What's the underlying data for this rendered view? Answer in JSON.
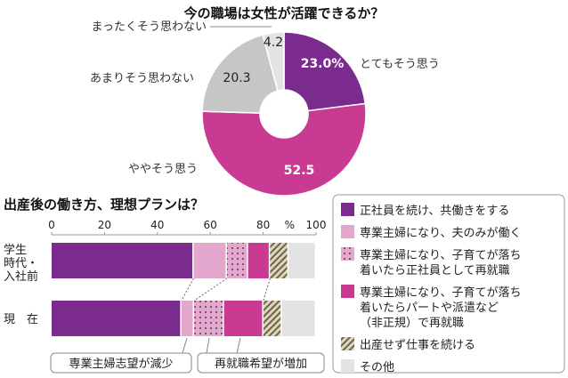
{
  "colors": {
    "full_time": "#7b2a8e",
    "housewife": "#e3a6cc",
    "housewife_regular": "#e3a6cc",
    "housewife_nonregular": "#c93a93",
    "no_children": "#c9c0a0",
    "other": "#e3e3e3",
    "pie_gray": "#c6c6c6",
    "pie_light": "#e3e3e3"
  },
  "chart_data": [
    {
      "type": "pie",
      "title": "今の職場は女性が活躍できるか？",
      "unit": "%",
      "slices": [
        {
          "label": "とてもそう思う",
          "value": 23.0,
          "value_label": "23.0%",
          "color": "#7b2a8e"
        },
        {
          "label": "ややそう思う",
          "value": 52.5,
          "value_label": "52.5",
          "color": "#c93a93"
        },
        {
          "label": "あまりそう思わない",
          "value": 20.3,
          "value_label": "20.3",
          "color": "#c6c6c6"
        },
        {
          "label": "まったくそう思わない",
          "value": 4.2,
          "value_label": "4.2",
          "color": "#e3e3e3"
        }
      ]
    },
    {
      "type": "bar",
      "orientation": "horizontal-stacked",
      "title": "出産後の働き方、理想プランは？",
      "xlim": [
        0,
        100
      ],
      "xticks": [
        "0",
        "20",
        "40",
        "60",
        "80",
        "100"
      ],
      "unit_label": "%",
      "categories": [
        "学生時代・入社前",
        "現　在"
      ],
      "category_lines": [
        [
          "学生",
          "時代・",
          "入社前"
        ],
        [
          "現　在"
        ]
      ],
      "series": [
        {
          "name": "正社員を続け、共働きをする",
          "values": [
            53.7,
            49.1
          ],
          "color": "#7b2a8e",
          "pattern": "solid"
        },
        {
          "name": "専業主婦になり、夫のみが働く",
          "values": [
            12.6,
            4.8
          ],
          "color": "#e3a6cc",
          "pattern": "solid"
        },
        {
          "name": "専業主婦になり、子育てが落ち着いたら正社員として再就職",
          "name_lines": [
            "専業主婦になり、子育てが落ち",
            "着いたら正社員として再就職"
          ],
          "values": [
            8.0,
            11.3
          ],
          "color": "#e3a6cc",
          "pattern": "dots"
        },
        {
          "name": "専業主婦になり、子育てが落ち着いたらパートや派遣など（非正規）で再就職",
          "name_lines": [
            "専業主婦になり、子育てが落ち",
            "着いたらパートや派遣など",
            "（非正規）で再就職"
          ],
          "values": [
            8.3,
            14.9
          ],
          "color": "#c93a93",
          "pattern": "solid"
        },
        {
          "name": "出産せず仕事を続ける",
          "values": [
            7.0,
            7.0
          ],
          "color": "#c9c0a0",
          "pattern": "stripes"
        },
        {
          "name": "その他",
          "values": [
            10.4,
            12.9
          ],
          "color": "#e3e3e3",
          "pattern": "solid"
        }
      ],
      "annotations": [
        "専業主婦志望が減少",
        "再就職希望が増加"
      ],
      "legend_position": "right"
    }
  ]
}
